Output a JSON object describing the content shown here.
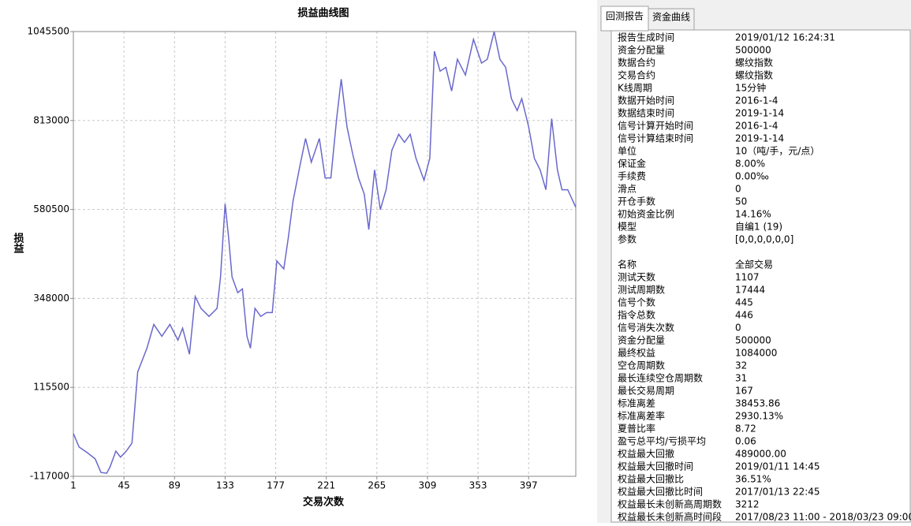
{
  "chart_data": {
    "type": "line",
    "title": "损益曲线图",
    "xlabel": "交易次数",
    "ylabel": "损益",
    "color": "#6a68cc",
    "grid": true,
    "xlim": [
      1,
      438
    ],
    "ylim": [
      -117000,
      1045500
    ],
    "xticks": [
      1,
      45,
      89,
      133,
      177,
      221,
      265,
      309,
      353,
      397
    ],
    "yticks": [
      -117000,
      115500,
      348000,
      580500,
      813000,
      1045500
    ],
    "x": [
      1,
      6,
      13,
      20,
      25,
      30,
      33,
      38,
      42,
      47,
      52,
      57,
      61,
      65,
      71,
      78,
      85,
      92,
      96,
      102,
      107,
      112,
      119,
      126,
      129,
      133,
      136,
      139,
      144,
      148,
      152,
      155,
      159,
      164,
      169,
      174,
      178,
      184,
      188,
      192,
      198,
      203,
      208,
      215,
      220,
      225,
      230,
      234,
      239,
      244,
      249,
      254,
      258,
      263,
      268,
      273,
      278,
      284,
      289,
      294,
      299,
      306,
      311,
      315,
      320,
      325,
      330,
      335,
      342,
      349,
      356,
      361,
      367,
      372,
      377,
      382,
      387,
      391,
      397,
      402,
      407,
      412,
      417,
      422,
      426,
      431,
      438
    ],
    "values": [
      -5000,
      -40500,
      -55000,
      -71500,
      -107000,
      -109000,
      -92000,
      -51000,
      -67000,
      -51000,
      -30000,
      156000,
      187000,
      218000,
      280000,
      249000,
      280000,
      239000,
      270000,
      202000,
      353000,
      322000,
      301000,
      322000,
      404000,
      595000,
      508000,
      404000,
      363000,
      373000,
      249000,
      218000,
      322000,
      301000,
      311000,
      311000,
      446000,
      425000,
      508000,
      601000,
      694000,
      766000,
      704000,
      766000,
      663000,
      663000,
      818000,
      921000,
      797000,
      725000,
      663000,
      621000,
      528000,
      684000,
      580000,
      632000,
      735000,
      777000,
      756000,
      777000,
      714000,
      657000,
      714000,
      994000,
      942000,
      952000,
      890000,
      973000,
      932000,
      1025000,
      963000,
      973000,
      1045000,
      973000,
      952000,
      870000,
      839000,
      870000,
      797000,
      714000,
      684000,
      632000,
      818000,
      684000,
      632000,
      632000,
      586000
    ]
  },
  "tabs": [
    "回测报告",
    "资金曲线"
  ],
  "report": {
    "sections": [
      {
        "rows": [
          [
            "报告生成时间",
            "2019/01/12 16:24:31"
          ],
          [
            "资金分配量",
            "500000"
          ],
          [
            "数据合约",
            "螺纹指数"
          ],
          [
            "交易合约",
            "螺纹指数"
          ],
          [
            "K线周期",
            "15分钟"
          ],
          [
            "数据开始时间",
            "2016-1-4"
          ],
          [
            "数据结束时间",
            "2019-1-14"
          ],
          [
            "信号计算开始时间",
            "2016-1-4"
          ],
          [
            "信号计算结束时间",
            "2019-1-14"
          ],
          [
            "单位",
            "10（吨/手，元/点）"
          ],
          [
            "保证金",
            "8.00%"
          ],
          [
            "手续费",
            "0.00‰"
          ],
          [
            "滑点",
            "0"
          ],
          [
            "开仓手数",
            "50"
          ],
          [
            "初始资金比例",
            "14.16%"
          ],
          [
            "模型",
            "自编1 (19)"
          ],
          [
            "参数",
            "[0,0,0,0,0,0]"
          ]
        ]
      },
      {
        "rows": [
          [
            "名称",
            "全部交易"
          ],
          [
            "测试天数",
            "1107"
          ],
          [
            "测试周期数",
            "17444"
          ],
          [
            "信号个数",
            "445"
          ],
          [
            "指令总数",
            "446"
          ],
          [
            "信号消失次数",
            "0"
          ],
          [
            "资金分配量",
            "500000"
          ],
          [
            "最终权益",
            "1084000"
          ],
          [
            "空仓周期数",
            "32"
          ],
          [
            "最长连续空仓周期数",
            "31"
          ],
          [
            "最长交易周期",
            "167"
          ],
          [
            "标准离差",
            "38453.86"
          ],
          [
            "标准离差率",
            "2930.13%"
          ],
          [
            "夏普比率",
            "8.72"
          ],
          [
            "盈亏总平均/亏损平均",
            "0.06"
          ],
          [
            "权益最大回撤",
            "489000.00"
          ],
          [
            "权益最大回撤时间",
            "2019/01/11 14:45"
          ],
          [
            "权益最大回撤比",
            "36.51%"
          ],
          [
            "权益最大回撤比时间",
            "2017/01/13 22:45"
          ],
          [
            "权益最长未创新高周期数",
            "3212"
          ],
          [
            "权益最长未创新高时间段",
            "2017/08/23 11:00 - 2018/03/23 09:00"
          ]
        ]
      }
    ]
  }
}
